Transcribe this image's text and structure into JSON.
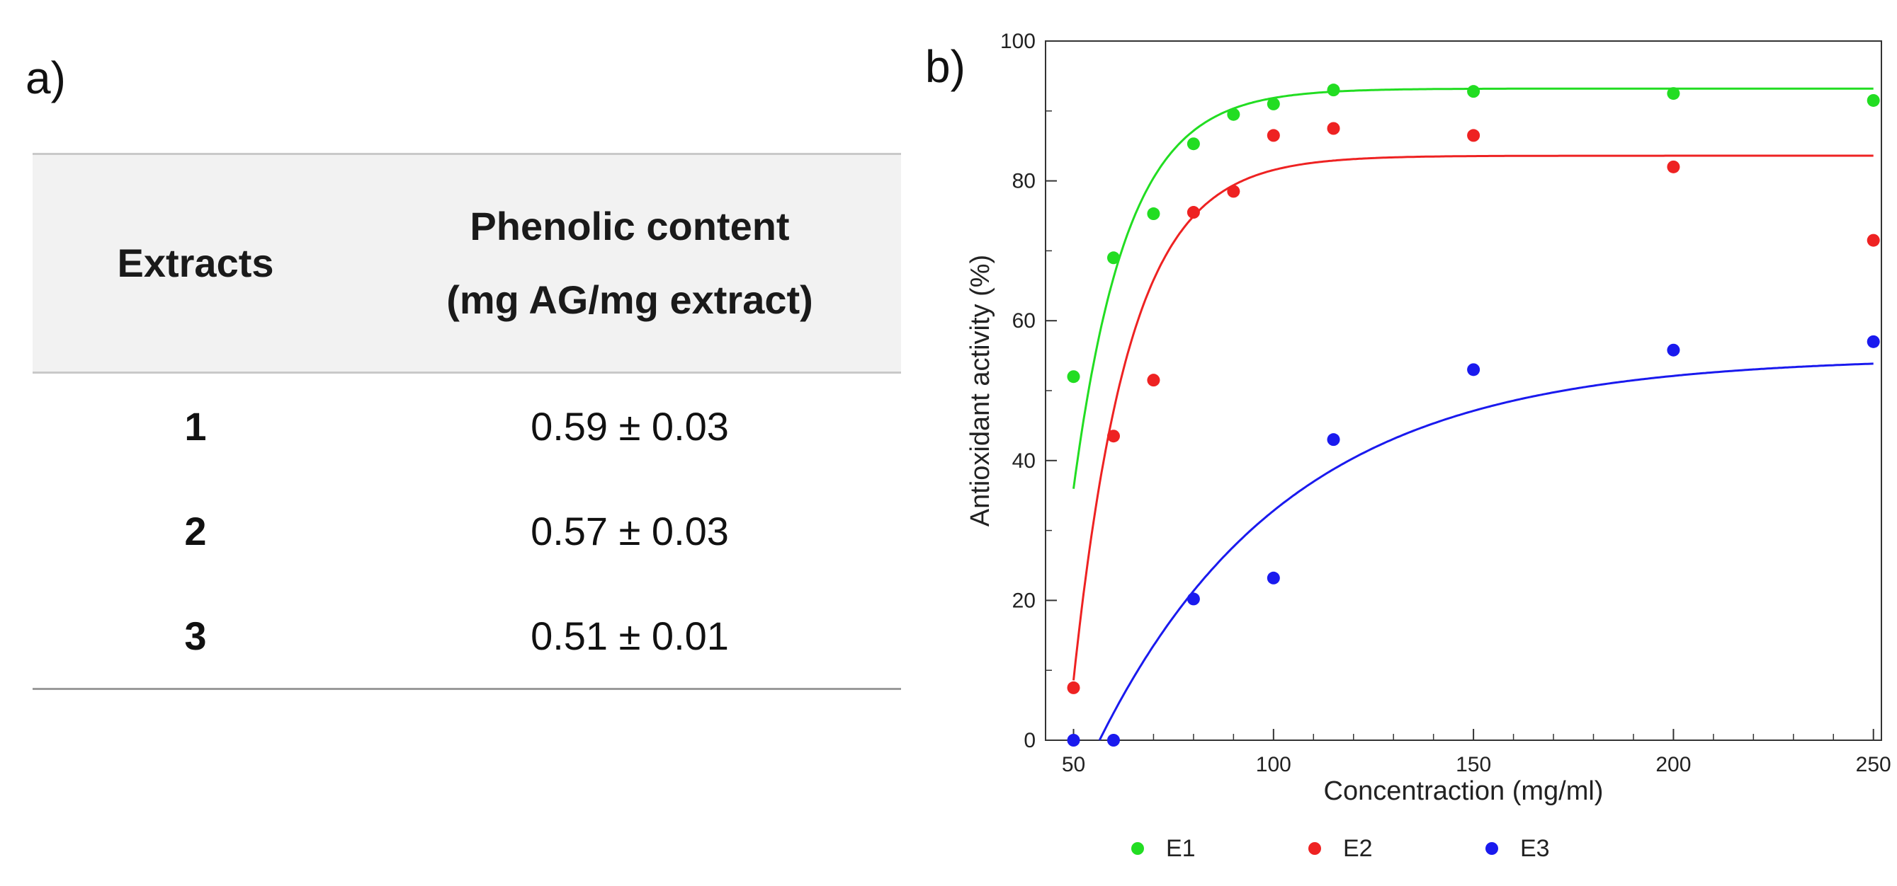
{
  "panel_a": {
    "label": "a)",
    "table": {
      "headers": {
        "extracts": "Extracts",
        "content_line1": "Phenolic content",
        "content_line2": "(mg AG/mg extract)"
      },
      "rows": [
        {
          "extract": "1",
          "value": "0.59 ± 0.03"
        },
        {
          "extract": "2",
          "value": "0.57 ± 0.03"
        },
        {
          "extract": "3",
          "value": "0.51 ± 0.01"
        }
      ]
    }
  },
  "panel_b": {
    "label": "b)"
  },
  "chart_data": {
    "type": "scatter",
    "title": "",
    "xlabel": "Concentraction (mg/ml)",
    "ylabel": "Antioxidant activity (%)",
    "xlim": [
      43,
      252
    ],
    "ylim": [
      0,
      100
    ],
    "x_ticks": [
      50,
      100,
      150,
      200,
      250
    ],
    "y_ticks": [
      0,
      20,
      40,
      60,
      80,
      100
    ],
    "grid": false,
    "legend_position": "bottom",
    "series": [
      {
        "name": "E1",
        "color": "#22dd22",
        "x": [
          50,
          60,
          70,
          80,
          90,
          100,
          115,
          150,
          200,
          250
        ],
        "y": [
          52,
          69,
          75.3,
          85.3,
          89.5,
          91,
          93,
          92.8,
          92.5,
          91.5
        ],
        "fit": {
          "model": "exponential",
          "asymptote": 93.2,
          "x0": 43.5,
          "k": 0.075
        }
      },
      {
        "name": "E2",
        "color": "#ee2222",
        "x": [
          50,
          60,
          70,
          80,
          90,
          100,
          115,
          150,
          200,
          250
        ],
        "y": [
          7.5,
          43.5,
          51.5,
          75.5,
          78.5,
          86.5,
          87.5,
          86.5,
          82,
          71.5
        ],
        "fit": {
          "model": "exponential",
          "asymptote": 83.6,
          "x0": 48.5,
          "k": 0.072
        }
      },
      {
        "name": "E3",
        "color": "#1a1aee",
        "x": [
          50,
          60,
          80,
          100,
          115,
          150,
          200,
          250
        ],
        "y": [
          0,
          0,
          20.2,
          23.2,
          43,
          53,
          55.8,
          57
        ],
        "fit": {
          "model": "exponential",
          "asymptote": 54.8,
          "x0": 56.5,
          "k": 0.021
        }
      }
    ]
  }
}
